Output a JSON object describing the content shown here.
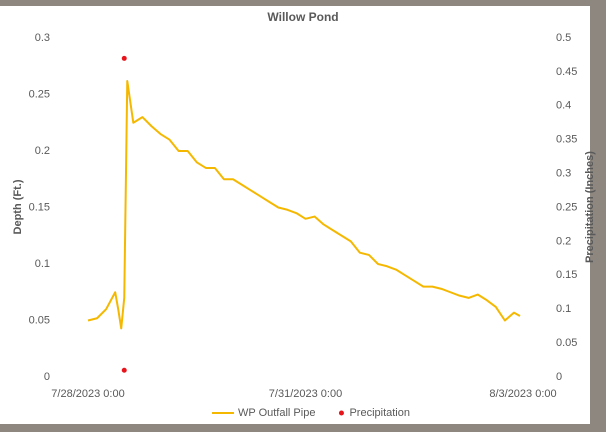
{
  "chart_data": {
    "type": "line",
    "title": "Willow Pond",
    "ylabel": "Depth (Ft.)",
    "y2label": "Precipitation (Inches)",
    "xlim": [
      "7/28/2023 0:00",
      "8/3/2023 0:00"
    ],
    "xticks": [
      "7/28/2023 0:00",
      "7/31/2023 0:00",
      "8/3/2023 0:00"
    ],
    "ylim": [
      0,
      0.3
    ],
    "yticks": [
      0,
      0.05,
      0.1,
      0.15,
      0.2,
      0.25,
      0.3
    ],
    "y2lim": [
      0,
      0.5
    ],
    "y2ticks": [
      0,
      0.05,
      0.1,
      0.15,
      0.2,
      0.25,
      0.3,
      0.35,
      0.4,
      0.45,
      0.5
    ],
    "grid": false,
    "legend": "bottom",
    "series": [
      {
        "name": "WP Outfall Pipe",
        "type": "line",
        "color": "#f5b800",
        "x": [
          "7/28/2023 0:00",
          "7/28/2023 3:00",
          "7/28/2023 6:00",
          "7/28/2023 9:00",
          "7/28/2023 10:00",
          "7/28/2023 11:00",
          "7/28/2023 12:00",
          "7/28/2023 13:00",
          "7/28/2023 15:00",
          "7/28/2023 18:00",
          "7/28/2023 21:00",
          "7/29/2023 0:00",
          "7/29/2023 3:00",
          "7/29/2023 6:00",
          "7/29/2023 9:00",
          "7/29/2023 12:00",
          "7/29/2023 15:00",
          "7/29/2023 18:00",
          "7/29/2023 21:00",
          "7/30/2023 0:00",
          "7/30/2023 3:00",
          "7/30/2023 6:00",
          "7/30/2023 9:00",
          "7/30/2023 12:00",
          "7/30/2023 15:00",
          "7/30/2023 18:00",
          "7/30/2023 21:00",
          "7/31/2023 0:00",
          "7/31/2023 3:00",
          "7/31/2023 6:00",
          "7/31/2023 9:00",
          "7/31/2023 12:00",
          "7/31/2023 15:00",
          "7/31/2023 18:00",
          "7/31/2023 21:00",
          "8/1/2023 0:00",
          "8/1/2023 3:00",
          "8/1/2023 6:00",
          "8/1/2023 9:00",
          "8/1/2023 12:00",
          "8/1/2023 15:00",
          "8/1/2023 18:00",
          "8/1/2023 21:00",
          "8/2/2023 0:00",
          "8/2/2023 3:00",
          "8/2/2023 6:00",
          "8/2/2023 9:00",
          "8/2/2023 12:00",
          "8/2/2023 15:00",
          "8/2/2023 18:00",
          "8/2/2023 21:00",
          "8/2/2023 23:00"
        ],
        "values": [
          0.05,
          0.052,
          0.06,
          0.075,
          0.06,
          0.043,
          0.07,
          0.262,
          0.225,
          0.23,
          0.222,
          0.215,
          0.21,
          0.2,
          0.2,
          0.19,
          0.185,
          0.185,
          0.175,
          0.175,
          0.17,
          0.165,
          0.16,
          0.155,
          0.15,
          0.148,
          0.145,
          0.14,
          0.142,
          0.135,
          0.13,
          0.125,
          0.12,
          0.11,
          0.108,
          0.1,
          0.098,
          0.095,
          0.09,
          0.085,
          0.08,
          0.08,
          0.078,
          0.075,
          0.072,
          0.07,
          0.073,
          0.068,
          0.062,
          0.05,
          0.057,
          0.054
        ]
      },
      {
        "name": "Precipitation",
        "type": "scatter",
        "axis": "y2",
        "color": "#e8141c",
        "x": [
          "7/28/2023 12:00",
          "7/28/2023 12:00"
        ],
        "values": [
          0.47,
          0.01
        ]
      }
    ]
  }
}
